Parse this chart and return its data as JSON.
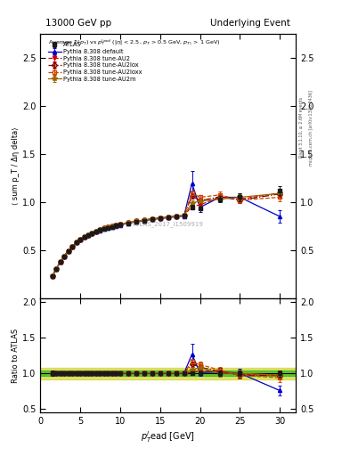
{
  "title_left": "13000 GeV pp",
  "title_right": "Underlying Event",
  "watermark": "ATLAS_2017_I1509919",
  "ylabel_main": "⟨ sum p_T / Δη delta⟩",
  "ylabel_ratio": "Ratio to ATLAS",
  "xlabel": "p$_T^{l}$ead [GeV]",
  "right_label1": "Rivet 3.1.10, ≥ 2.6M events",
  "right_label2": "mcplots.cern.ch [arXiv:1306.3436]",
  "atlas_data_x": [
    1.5,
    2.0,
    2.5,
    3.0,
    3.5,
    4.0,
    4.5,
    5.0,
    5.5,
    6.0,
    6.5,
    7.0,
    7.5,
    8.0,
    8.5,
    9.0,
    9.5,
    10.0,
    11.0,
    12.0,
    13.0,
    14.0,
    15.0,
    16.0,
    17.0,
    18.0,
    19.0,
    20.0,
    22.5,
    25.0,
    30.0
  ],
  "atlas_data_y": [
    0.225,
    0.305,
    0.375,
    0.437,
    0.49,
    0.538,
    0.578,
    0.61,
    0.635,
    0.657,
    0.674,
    0.692,
    0.707,
    0.72,
    0.732,
    0.743,
    0.753,
    0.763,
    0.78,
    0.795,
    0.808,
    0.819,
    0.829,
    0.838,
    0.847,
    0.855,
    0.945,
    0.935,
    1.03,
    1.05,
    1.12
  ],
  "atlas_data_yerr": [
    0.008,
    0.008,
    0.008,
    0.008,
    0.007,
    0.007,
    0.007,
    0.007,
    0.006,
    0.006,
    0.006,
    0.006,
    0.006,
    0.006,
    0.006,
    0.006,
    0.005,
    0.005,
    0.005,
    0.005,
    0.005,
    0.005,
    0.005,
    0.005,
    0.008,
    0.008,
    0.025,
    0.02,
    0.035,
    0.04,
    0.05
  ],
  "pythia_default_x": [
    1.5,
    2.0,
    2.5,
    3.0,
    3.5,
    4.0,
    4.5,
    5.0,
    5.5,
    6.0,
    6.5,
    7.0,
    7.5,
    8.0,
    8.5,
    9.0,
    9.5,
    10.0,
    11.0,
    12.0,
    13.0,
    14.0,
    15.0,
    16.0,
    17.0,
    18.0,
    19.0,
    20.0,
    22.5,
    25.0,
    30.0
  ],
  "pythia_default_y": [
    0.225,
    0.305,
    0.375,
    0.437,
    0.49,
    0.538,
    0.578,
    0.61,
    0.635,
    0.655,
    0.673,
    0.69,
    0.706,
    0.719,
    0.731,
    0.742,
    0.752,
    0.762,
    0.779,
    0.794,
    0.807,
    0.818,
    0.828,
    0.837,
    0.846,
    0.854,
    1.195,
    0.945,
    1.05,
    1.05,
    0.85
  ],
  "pythia_default_yerr": [
    0.003,
    0.003,
    0.003,
    0.003,
    0.003,
    0.003,
    0.003,
    0.003,
    0.003,
    0.003,
    0.003,
    0.003,
    0.003,
    0.003,
    0.003,
    0.003,
    0.003,
    0.003,
    0.003,
    0.003,
    0.003,
    0.003,
    0.003,
    0.003,
    0.003,
    0.003,
    0.13,
    0.045,
    0.045,
    0.045,
    0.065
  ],
  "au2_x": [
    1.5,
    2.0,
    2.5,
    3.0,
    3.5,
    4.0,
    4.5,
    5.0,
    5.5,
    6.0,
    6.5,
    7.0,
    7.5,
    8.0,
    8.5,
    9.0,
    9.5,
    10.0,
    11.0,
    12.0,
    13.0,
    14.0,
    15.0,
    16.0,
    17.0,
    18.0,
    19.0,
    20.0,
    22.5,
    25.0,
    30.0
  ],
  "au2_y": [
    0.225,
    0.305,
    0.375,
    0.437,
    0.49,
    0.538,
    0.578,
    0.612,
    0.637,
    0.66,
    0.678,
    0.696,
    0.712,
    0.725,
    0.737,
    0.748,
    0.758,
    0.768,
    0.785,
    0.8,
    0.813,
    0.824,
    0.834,
    0.843,
    0.852,
    0.86,
    0.955,
    0.97,
    1.055,
    1.03,
    1.095
  ],
  "au2_yerr": [
    0.003,
    0.003,
    0.003,
    0.003,
    0.003,
    0.003,
    0.003,
    0.003,
    0.003,
    0.003,
    0.003,
    0.003,
    0.003,
    0.003,
    0.003,
    0.003,
    0.003,
    0.003,
    0.003,
    0.003,
    0.003,
    0.003,
    0.003,
    0.003,
    0.003,
    0.003,
    0.025,
    0.025,
    0.035,
    0.035,
    0.045
  ],
  "au2lox_x": [
    1.5,
    2.0,
    2.5,
    3.0,
    3.5,
    4.0,
    4.5,
    5.0,
    5.5,
    6.0,
    6.5,
    7.0,
    7.5,
    8.0,
    8.5,
    9.0,
    9.5,
    10.0,
    11.0,
    12.0,
    13.0,
    14.0,
    15.0,
    16.0,
    17.0,
    18.0,
    19.0,
    20.0,
    22.5,
    25.0,
    30.0
  ],
  "au2lox_y": [
    0.225,
    0.305,
    0.375,
    0.437,
    0.49,
    0.538,
    0.578,
    0.612,
    0.637,
    0.66,
    0.678,
    0.696,
    0.712,
    0.725,
    0.737,
    0.748,
    0.758,
    0.768,
    0.785,
    0.8,
    0.813,
    0.824,
    0.834,
    0.843,
    0.852,
    0.86,
    1.065,
    1.015,
    1.055,
    1.02,
    1.085
  ],
  "au2lox_yerr": [
    0.003,
    0.003,
    0.003,
    0.003,
    0.003,
    0.003,
    0.003,
    0.003,
    0.003,
    0.003,
    0.003,
    0.003,
    0.003,
    0.003,
    0.003,
    0.003,
    0.003,
    0.003,
    0.003,
    0.003,
    0.003,
    0.003,
    0.003,
    0.003,
    0.003,
    0.003,
    0.025,
    0.025,
    0.035,
    0.035,
    0.045
  ],
  "au2loxx_x": [
    1.5,
    2.0,
    2.5,
    3.0,
    3.5,
    4.0,
    4.5,
    5.0,
    5.5,
    6.0,
    6.5,
    7.0,
    7.5,
    8.0,
    8.5,
    9.0,
    9.5,
    10.0,
    11.0,
    12.0,
    13.0,
    14.0,
    15.0,
    16.0,
    17.0,
    18.0,
    19.0,
    20.0,
    22.5,
    25.0,
    30.0
  ],
  "au2loxx_y": [
    0.225,
    0.305,
    0.375,
    0.437,
    0.49,
    0.538,
    0.578,
    0.612,
    0.637,
    0.66,
    0.678,
    0.696,
    0.712,
    0.725,
    0.737,
    0.748,
    0.758,
    0.768,
    0.785,
    0.8,
    0.813,
    0.824,
    0.834,
    0.843,
    0.852,
    0.86,
    1.095,
    1.05,
    1.075,
    1.02,
    1.05
  ],
  "au2loxx_yerr": [
    0.003,
    0.003,
    0.003,
    0.003,
    0.003,
    0.003,
    0.003,
    0.003,
    0.003,
    0.003,
    0.003,
    0.003,
    0.003,
    0.003,
    0.003,
    0.003,
    0.003,
    0.003,
    0.003,
    0.003,
    0.003,
    0.003,
    0.003,
    0.003,
    0.003,
    0.003,
    0.025,
    0.025,
    0.035,
    0.035,
    0.045
  ],
  "au2m_x": [
    1.5,
    2.0,
    2.5,
    3.0,
    3.5,
    4.0,
    4.5,
    5.0,
    5.5,
    6.0,
    6.5,
    7.0,
    7.5,
    8.0,
    8.5,
    9.0,
    9.5,
    10.0,
    11.0,
    12.0,
    13.0,
    14.0,
    15.0,
    16.0,
    17.0,
    18.0,
    19.0,
    20.0,
    22.5,
    25.0,
    30.0
  ],
  "au2m_y": [
    0.225,
    0.305,
    0.375,
    0.437,
    0.49,
    0.538,
    0.578,
    0.612,
    0.637,
    0.66,
    0.678,
    0.696,
    0.712,
    0.725,
    0.737,
    0.748,
    0.758,
    0.768,
    0.785,
    0.8,
    0.813,
    0.824,
    0.834,
    0.843,
    0.852,
    0.86,
    0.99,
    1.01,
    1.03,
    1.05,
    1.09
  ],
  "au2m_yerr": [
    0.003,
    0.003,
    0.003,
    0.003,
    0.003,
    0.003,
    0.003,
    0.003,
    0.003,
    0.003,
    0.003,
    0.003,
    0.003,
    0.003,
    0.003,
    0.003,
    0.003,
    0.003,
    0.003,
    0.003,
    0.003,
    0.003,
    0.003,
    0.003,
    0.003,
    0.003,
    0.025,
    0.025,
    0.035,
    0.035,
    0.045
  ],
  "xlim": [
    0,
    32
  ],
  "ylim_main": [
    0.0,
    2.75
  ],
  "ylim_ratio": [
    0.45,
    2.05
  ],
  "yticks_main": [
    0.5,
    1.0,
    1.5,
    2.0,
    2.5
  ],
  "yticks_ratio": [
    0.5,
    1.0,
    1.5,
    2.0
  ],
  "color_atlas": "#1a1a1a",
  "color_default": "#0000cc",
  "color_au2": "#cc0000",
  "color_au2lox": "#880000",
  "color_au2loxx": "#cc4400",
  "color_au2m": "#996600",
  "band_yellow": "#cccc00",
  "band_green": "#00aa00"
}
